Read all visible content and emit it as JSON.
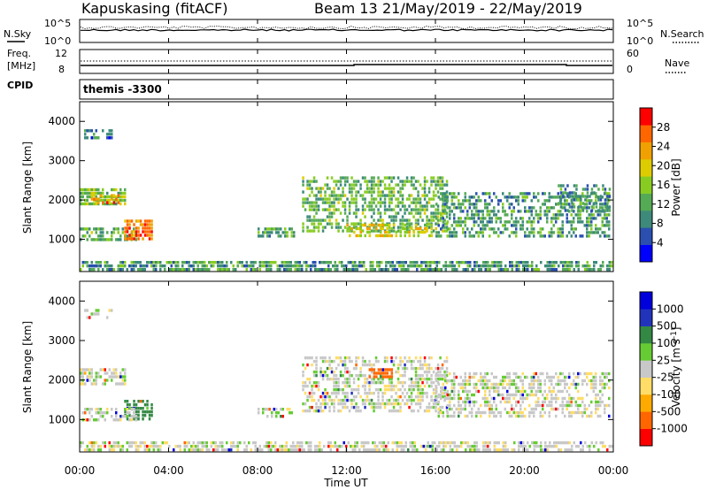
{
  "header": {
    "station": "Kapuskasing (fitACF)",
    "beam": "Beam 13",
    "dates": "21/May/2019 - 22/May/2019"
  },
  "noise_panel": {
    "left_label": "N.Sky",
    "right_label": "N.Search",
    "left_ticks": [
      "10^5",
      "10^0"
    ],
    "right_ticks": [
      "10^5",
      "10^0"
    ]
  },
  "freq_panel": {
    "label_line1": "Freq.",
    "label_line2": "[MHz]",
    "cpid_label": "CPID",
    "right_label": "Nave",
    "left_ticks": [
      "12",
      "8"
    ],
    "right_ticks": [
      "60",
      "0"
    ],
    "freq_mhz": 10.5,
    "nave_range": [
      0,
      60
    ]
  },
  "cpid_text": "themis  -3300",
  "colors": {
    "power_scale": [
      "#0000ff",
      "#2a4fb0",
      "#3d8a7a",
      "#55aa55",
      "#88cc22",
      "#ddcc00",
      "#f0a000",
      "#ff6600",
      "#ff0000"
    ],
    "velocity_scale": [
      "#ff0000",
      "#ff6600",
      "#ffaa00",
      "#ffdd66",
      "#c8c8c8",
      "#66cc33",
      "#338844",
      "#2233bb",
      "#0000dd"
    ]
  },
  "chart_data": [
    {
      "type": "heatmap",
      "panel": "power",
      "ylabel": "Slant Range [km]",
      "yticks": [
        "4000",
        "3000",
        "2000",
        "1000"
      ],
      "ylim": [
        180,
        4500
      ],
      "colorbar_label": "Power [dB]",
      "colorbar_ticks": [
        "28",
        "24",
        "20",
        "16",
        "12",
        "8",
        "4"
      ],
      "colorbar_range": [
        0,
        30
      ],
      "regions": [
        {
          "t": [
            0.0,
            23.9
          ],
          "r": [
            200,
            450
          ],
          "value": 10,
          "density": 0.7
        },
        {
          "t": [
            0.0,
            2.0
          ],
          "r": [
            1900,
            2300
          ],
          "value": 14,
          "density": 0.8
        },
        {
          "t": [
            0.5,
            1.7
          ],
          "r": [
            1950,
            2150
          ],
          "value": 22,
          "density": 0.5
        },
        {
          "t": [
            0.0,
            2.5
          ],
          "r": [
            1000,
            1300
          ],
          "value": 12,
          "density": 0.6
        },
        {
          "t": [
            2.0,
            3.2
          ],
          "r": [
            1000,
            1500
          ],
          "value": 24,
          "density": 0.7
        },
        {
          "t": [
            0.2,
            1.4
          ],
          "r": [
            3600,
            3800
          ],
          "value": 7,
          "density": 0.5
        },
        {
          "t": [
            10.0,
            16.5
          ],
          "r": [
            1200,
            2600
          ],
          "value": 12,
          "density": 0.55
        },
        {
          "t": [
            12.0,
            16.0
          ],
          "r": [
            1050,
            1400
          ],
          "value": 18,
          "density": 0.5
        },
        {
          "t": [
            16.0,
            23.8
          ],
          "r": [
            1100,
            2200
          ],
          "value": 10,
          "density": 0.5
        },
        {
          "t": [
            8.0,
            9.6
          ],
          "r": [
            1100,
            1300
          ],
          "value": 11,
          "density": 0.6
        },
        {
          "t": [
            21.5,
            23.8
          ],
          "r": [
            1700,
            2400
          ],
          "value": 9,
          "density": 0.5
        }
      ]
    },
    {
      "type": "heatmap",
      "panel": "velocity",
      "ylabel": "Slant Range [km]",
      "yticks": [
        "4000",
        "3000",
        "2000",
        "1000"
      ],
      "ylim": [
        180,
        4500
      ],
      "colorbar_label": "Velocity [m s^-1]",
      "colorbar_ticks": [
        "1000",
        "500",
        "100",
        "25",
        "-25",
        "-100",
        "-500",
        "-1000"
      ],
      "regions": [
        {
          "t": [
            0.0,
            23.9
          ],
          "r": [
            200,
            450
          ],
          "value": 0,
          "density": 0.6
        },
        {
          "t": [
            0.0,
            2.0
          ],
          "r": [
            1900,
            2300
          ],
          "value": 0,
          "density": 0.7
        },
        {
          "t": [
            2.0,
            3.2
          ],
          "r": [
            1000,
            1500
          ],
          "value": 150,
          "density": 0.6
        },
        {
          "t": [
            0.0,
            2.5
          ],
          "r": [
            1000,
            1300
          ],
          "value": 0,
          "density": 0.5
        },
        {
          "t": [
            10.0,
            16.5
          ],
          "r": [
            1200,
            2600
          ],
          "value": 0,
          "density": 0.5
        },
        {
          "t": [
            13.0,
            14.0
          ],
          "r": [
            2100,
            2300
          ],
          "value": -300,
          "density": 0.8
        },
        {
          "t": [
            16.0,
            23.8
          ],
          "r": [
            1100,
            2200
          ],
          "value": 0,
          "density": 0.5
        },
        {
          "t": [
            8.0,
            9.6
          ],
          "r": [
            1100,
            1300
          ],
          "value": 0,
          "density": 0.5
        },
        {
          "t": [
            0.2,
            1.4
          ],
          "r": [
            3600,
            3800
          ],
          "value": 0,
          "density": 0.4
        }
      ]
    }
  ],
  "xaxis": {
    "xlabel": "Time UT",
    "ticks": [
      "00:00",
      "04:00",
      "08:00",
      "12:00",
      "16:00",
      "20:00",
      "00:00"
    ],
    "range_hours": [
      0,
      24
    ]
  }
}
